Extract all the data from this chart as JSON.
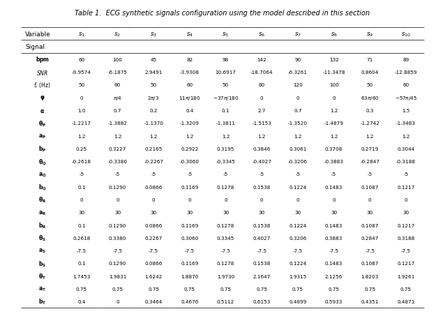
{
  "title": "Table 1.  ECG synthetic signals configuration using the model described in this section",
  "col_headers": [
    "$s_1$",
    "$s_2$",
    "$s_3$",
    "$s_4$",
    "$s_5$",
    "$s_6$",
    "$s_7$",
    "$s_8$",
    "$s_9$",
    "$s_{10}$"
  ],
  "row_headers": [
    "$\\mathbf{bpm}$",
    "$\\mathbf{\\mathit{SNR}}$",
    "$\\mathbf{\\mathit{f_r}}$ (Hz)",
    "$\\mathbf{\\varphi}$",
    "$\\mathbf{\\alpha}$",
    "$\\mathbf{\\theta_P}$",
    "$\\mathbf{a_P}$",
    "$\\mathbf{b_P}$",
    "$\\mathbf{\\theta_Q}$",
    "$\\mathbf{a_Q}$",
    "$\\mathbf{b_Q}$",
    "$\\mathbf{\\theta_R}$",
    "$\\mathbf{a_R}$",
    "$\\mathbf{b_R}$",
    "$\\mathbf{\\theta_S}$",
    "$\\mathbf{a_S}$",
    "$\\mathbf{b_S}$",
    "$\\mathbf{\\theta_T}$",
    "$\\mathbf{a_T}$",
    "$\\mathbf{b_T}$"
  ],
  "data": [
    [
      "60",
      "100",
      "45",
      "82",
      "98",
      "142",
      "90",
      "132",
      "71",
      "89"
    ],
    [
      "-9.9574",
      "-6.1875",
      "2.9491",
      "-3.9308",
      "10.6917",
      "-18.7064",
      "-6.3261",
      "-11.3478",
      "0.8604",
      "-12.8859"
    ],
    [
      "50",
      "60",
      "50",
      "60",
      "50",
      "60",
      "120",
      "100",
      "50",
      "60"
    ],
    [
      "0",
      "$\\pi/4$",
      "$2\\pi/3$",
      "$11\\pi/180$",
      "$-37\\pi/180$",
      "0",
      "0",
      "0",
      "$63\\pi/60$",
      "$-57\\pi/45$"
    ],
    [
      "1.0",
      "0.7",
      "0.2",
      "0.4",
      "0.1",
      "2.7",
      "0.7",
      "1.2",
      "0.3",
      "1.5"
    ],
    [
      "-1.2217",
      "-1.3882",
      "-1.1370",
      "-1.3209",
      "-1.3811",
      "-1.5153",
      "-1.3520",
      "-1.4879",
      "-1.2742",
      "-1.3483"
    ],
    [
      "1.2",
      "1.2",
      "1.2",
      "1.2",
      "1.2",
      "1.2",
      "1.2",
      "1.2",
      "1.2",
      "1.2"
    ],
    [
      "0.25",
      "0.3227",
      "0.2165",
      "0.2922",
      "0.3195",
      "0.3846",
      "0.3061",
      "0.3708",
      "0.2719",
      "0.3044"
    ],
    [
      "-0.2618",
      "-0.3380",
      "-0.2267",
      "-0.3060",
      "-0.3345",
      "-0.4027",
      "-0.3206",
      "-0.3883",
      "-0.2847",
      "-0.3188"
    ],
    [
      "-5",
      "-5",
      "-5",
      "-5",
      "-5",
      "-5",
      "-5",
      "-5",
      "-5",
      "-5"
    ],
    [
      "0.1",
      "0.1290",
      "0.0866",
      "0.1169",
      "0.1278",
      "0.1538",
      "0.1224",
      "0.1483",
      "0.1087",
      "0.1217"
    ],
    [
      "0",
      "0",
      "0",
      "0",
      "0",
      "0",
      "0",
      "0",
      "0",
      "0"
    ],
    [
      "30",
      "30",
      "30",
      "30",
      "30",
      "30",
      "30",
      "30",
      "30",
      "30"
    ],
    [
      "0.1",
      "0.1290",
      "0.0866",
      "0.1169",
      "0.1278",
      "0.1538",
      "0.1224",
      "0.1483",
      "0.1087",
      "0.1217"
    ],
    [
      "0.2618",
      "0.3380",
      "0.2267",
      "0.3060",
      "0.3345",
      "0.4027",
      "0.3206",
      "0.3883",
      "0.2847",
      "0.3188"
    ],
    [
      "-7.5",
      "-7.5",
      "-7.5",
      "-7.5",
      "-7.5",
      "-7.5",
      "-7.5",
      "-7.5",
      "-7.5",
      "-7.5"
    ],
    [
      "0.1",
      "0.1290",
      "0.0866",
      "0.1169",
      "0.1278",
      "0.1538",
      "0.1224",
      "0.1483",
      "0.1087",
      "0.1217"
    ],
    [
      "1.7453",
      "1.9831",
      "1.6242",
      "1.8870",
      "1.9730",
      "2.1647",
      "1.9315",
      "2.1256",
      "1.8203",
      "1.9261"
    ],
    [
      "0.75",
      "0.75",
      "0.75",
      "0.75",
      "0.75",
      "0.75",
      "0.75",
      "0.75",
      "0.75",
      "0.75"
    ],
    [
      "0.4",
      "0",
      "0.3464",
      "0.4676",
      "0.5112",
      "0.6153",
      "0.4899",
      "0.5933",
      "0.4351",
      "0.4871"
    ]
  ],
  "variable_label": "Variable",
  "signal_label": "Signal"
}
